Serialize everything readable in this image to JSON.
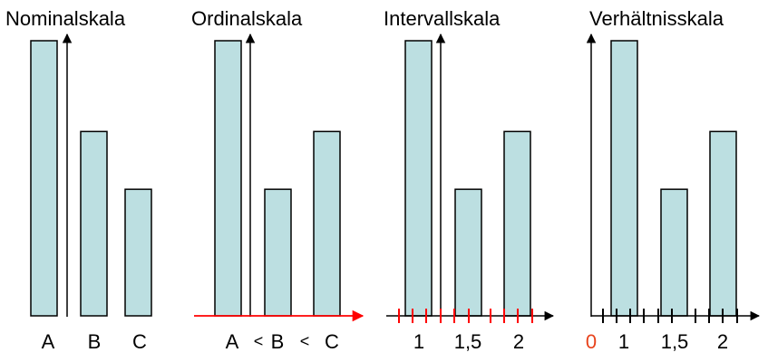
{
  "colors": {
    "bar_fill": "#bcdfe1",
    "bar_stroke": "#000000",
    "axis": "#000000",
    "highlight": "#ff0000"
  },
  "panels": [
    {
      "key": "nominal",
      "title": "Nominalskala",
      "bars": [
        {
          "category": "A",
          "value": 100
        },
        {
          "category": "B",
          "value": 67
        },
        {
          "category": "C",
          "value": 46
        }
      ],
      "axis_labels": [
        "A",
        "B",
        "C"
      ]
    },
    {
      "key": "ordinal",
      "title": "Ordinalskala",
      "bars": [
        {
          "category": "A",
          "value": 100
        },
        {
          "category": "B",
          "value": 46
        },
        {
          "category": "C",
          "value": 67
        }
      ],
      "axis_labels": [
        "A",
        "<",
        "B",
        "<",
        "C"
      ]
    },
    {
      "key": "interval",
      "title": "Intervallskala",
      "bars": [
        {
          "category": "1",
          "value": 100
        },
        {
          "category": "1,5",
          "value": 46
        },
        {
          "category": "2",
          "value": 67
        }
      ],
      "axis_labels": [
        "1",
        "1,5",
        "2"
      ]
    },
    {
      "key": "ratio",
      "title": "Verhältnisskala",
      "bars": [
        {
          "category": "1",
          "value": 100
        },
        {
          "category": "1,5",
          "value": 46
        },
        {
          "category": "2",
          "value": 67
        }
      ],
      "axis_labels": [
        "0",
        "1",
        "1,5",
        "2"
      ]
    }
  ]
}
